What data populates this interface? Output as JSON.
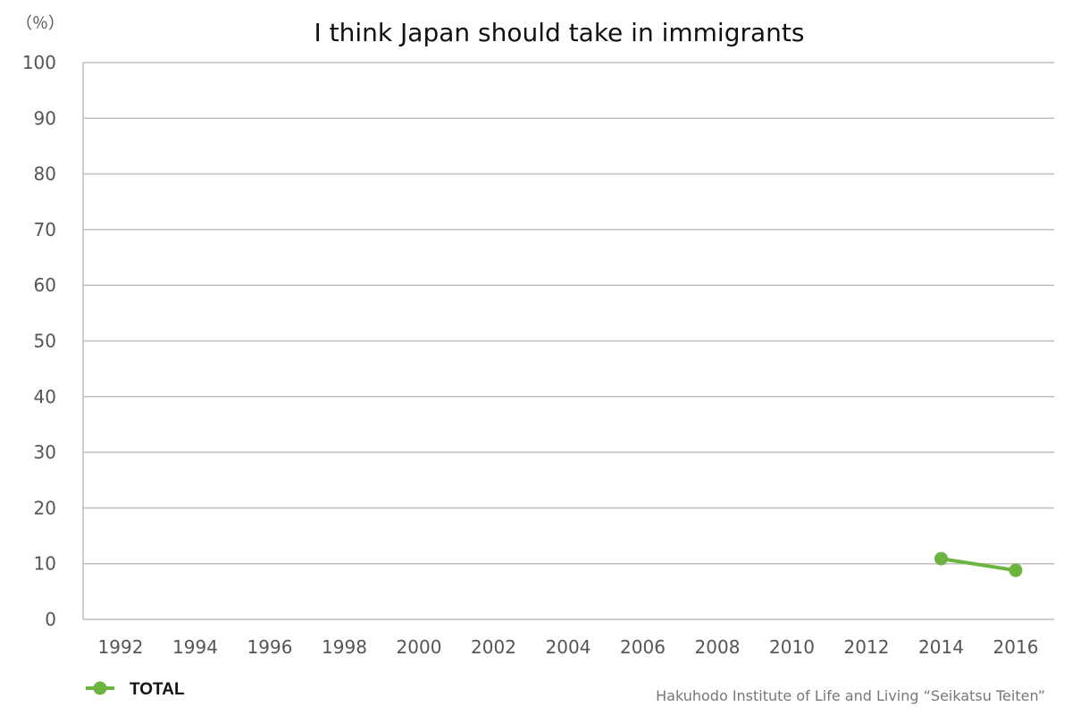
{
  "chart_data": {
    "type": "line",
    "title": "I think Japan should take in immigrants",
    "y_unit_label": "（％）",
    "x": [
      "1992",
      "1994",
      "1996",
      "1998",
      "2000",
      "2002",
      "2004",
      "2006",
      "2008",
      "2010",
      "2012",
      "2014",
      "2016"
    ],
    "ylim": [
      0,
      100
    ],
    "yticks": [
      0,
      10,
      20,
      30,
      40,
      50,
      60,
      70,
      80,
      90,
      100
    ],
    "grid": true,
    "legend_position": "bottom-left",
    "series": [
      {
        "name": "TOTAL",
        "color": "#6db33f",
        "values": [
          null,
          null,
          null,
          null,
          null,
          null,
          null,
          null,
          null,
          null,
          null,
          10.9,
          8.8
        ]
      }
    ],
    "source": "Hakuhodo Institute of Life and Living “Seikatsu Teiten”"
  }
}
